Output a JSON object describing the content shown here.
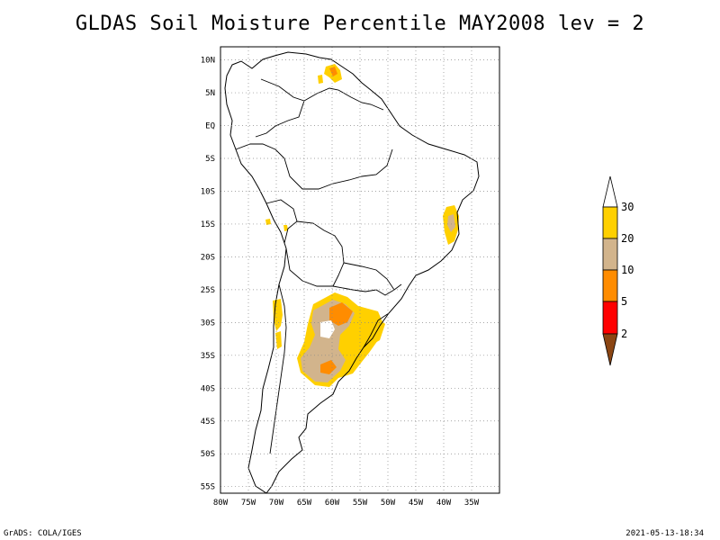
{
  "title": "GLDAS Soil Moisture Percentile MAY2008 lev = 2",
  "map": {
    "lon_range": [
      -80,
      -30
    ],
    "lat_range": [
      -56,
      12
    ],
    "lon_ticks": [
      "80W",
      "75W",
      "70W",
      "65W",
      "60W",
      "55W",
      "50W",
      "45W",
      "40W",
      "35W"
    ],
    "lat_ticks": [
      "10N",
      "5N",
      "EQ",
      "5S",
      "10S",
      "15S",
      "20S",
      "25S",
      "30S",
      "35S",
      "40S",
      "45S",
      "50S",
      "55S"
    ],
    "grid": true,
    "grid_style": "dotted"
  },
  "legend": {
    "levels": [
      "30",
      "20",
      "10",
      "5",
      "2"
    ],
    "colors": {
      "above_30": "#ffffff",
      "20_30": "#ffd000",
      "10_20": "#d2b48c",
      "5_10": "#ff8c00",
      "2_5": "#ff0000",
      "below_2": "#8b4513"
    }
  },
  "footer": {
    "left": "GrADS: COLA/IGES",
    "right": "2021-05-13-18:34"
  }
}
